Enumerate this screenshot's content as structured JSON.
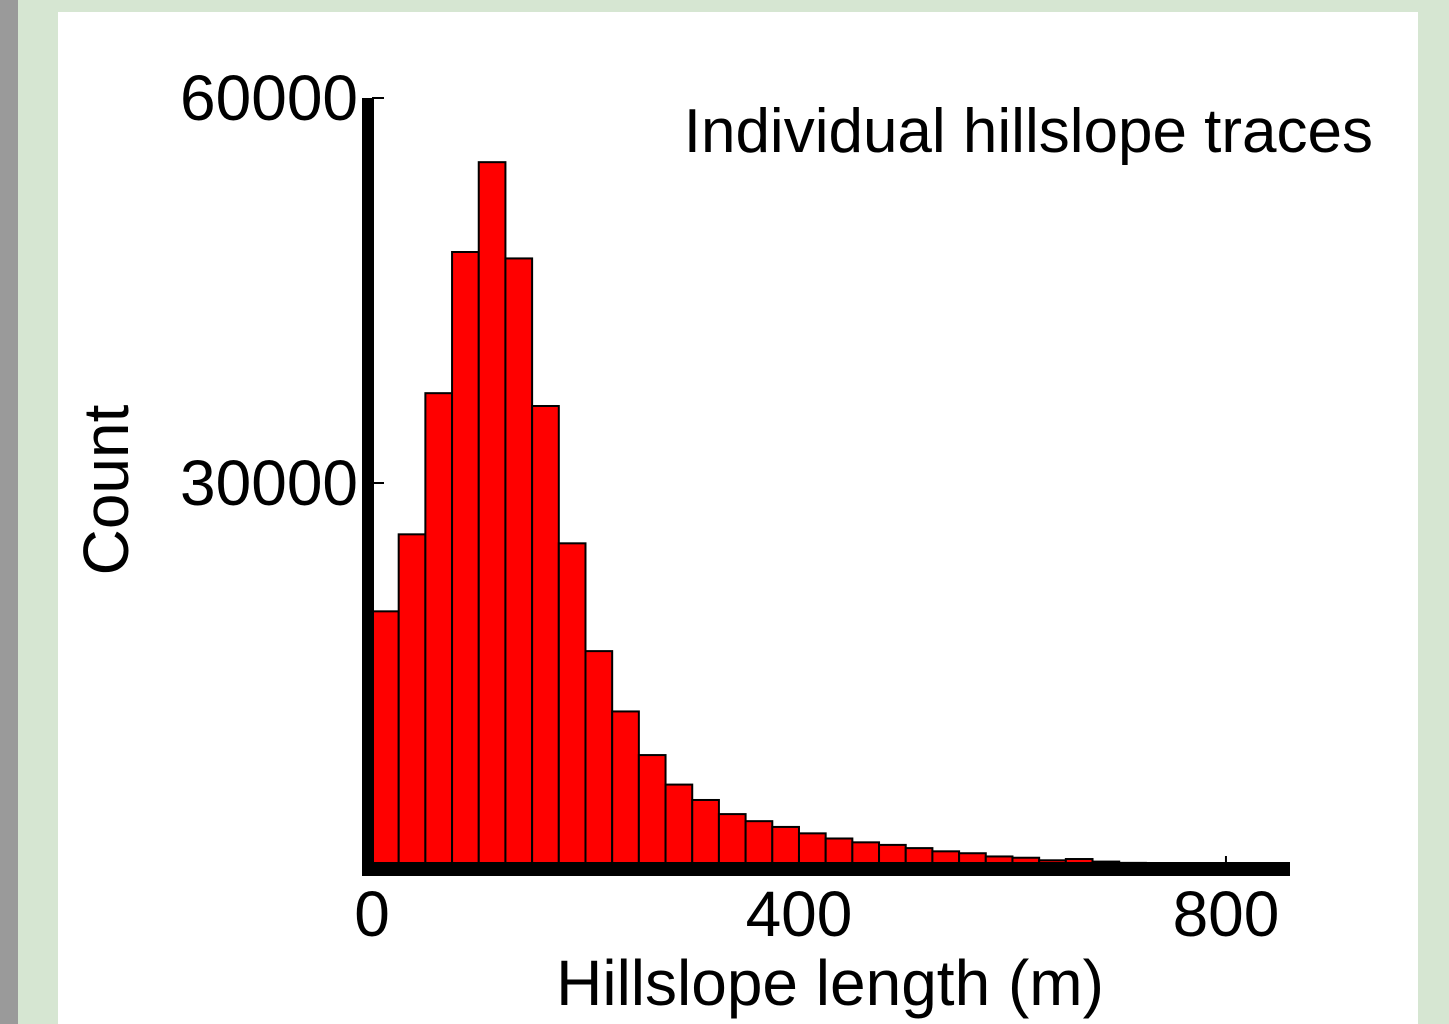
{
  "chart_data": {
    "type": "histogram",
    "title": "Individual hillslope traces",
    "x_label": "Hillslope length (m)",
    "y_label": "Count",
    "bins": [
      0,
      25,
      50,
      75,
      100,
      125,
      150,
      175,
      200,
      225,
      250,
      275,
      300,
      325,
      350,
      375,
      400,
      425,
      450,
      475,
      500,
      525,
      550,
      575,
      600,
      625,
      650,
      675,
      700,
      725,
      750,
      775,
      800,
      825,
      850
    ],
    "values": [
      20000,
      26000,
      37000,
      48000,
      55000,
      47500,
      36000,
      25300,
      16900,
      12200,
      8800,
      6500,
      5300,
      4200,
      3650,
      3200,
      2700,
      2300,
      2000,
      1800,
      1550,
      1300,
      1150,
      900,
      800,
      600,
      700,
      500,
      400,
      300,
      250,
      200,
      150,
      100
    ],
    "color": "#ff0000",
    "xlim": [
      0,
      860
    ],
    "ylim": [
      0,
      60000
    ],
    "xticks": [
      0,
      400,
      800
    ],
    "yticks": [
      30000,
      60000
    ]
  }
}
